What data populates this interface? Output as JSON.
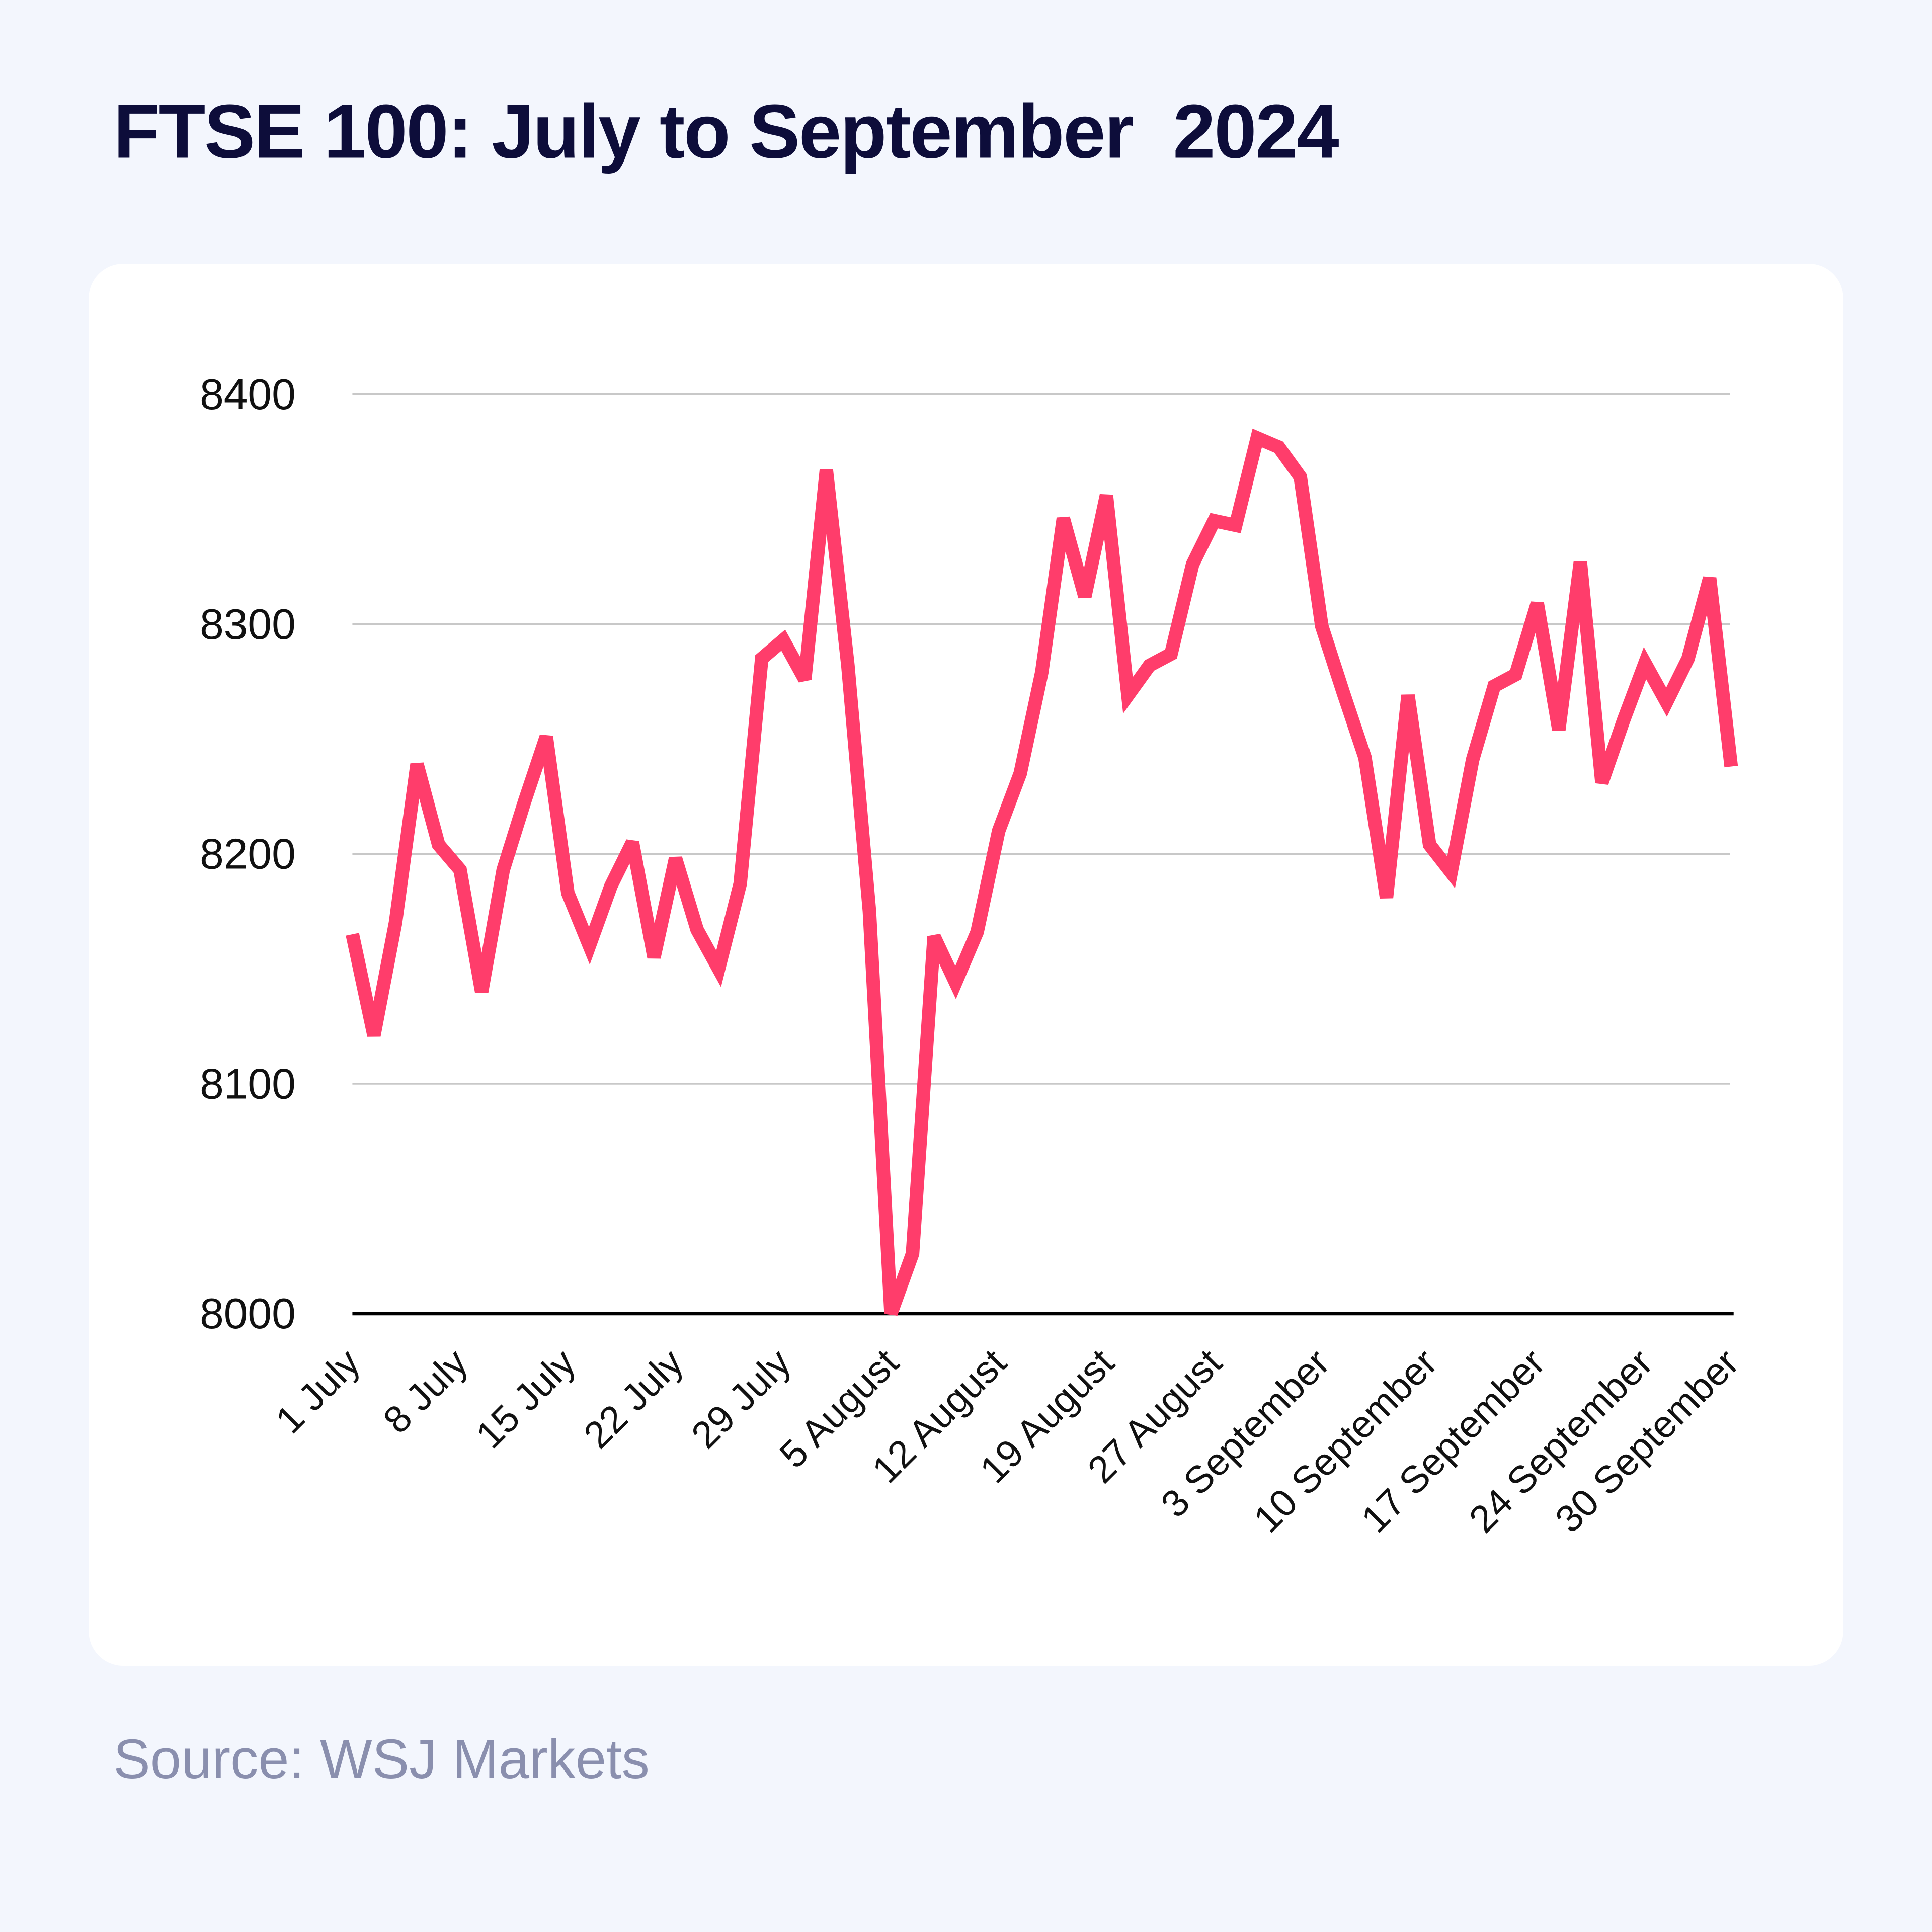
{
  "title": "FTSE 100: July to September  2024",
  "source": "Source: WSJ Markets",
  "colors": {
    "line": "#ff3d6b",
    "background": "#f3f6fd",
    "card": "#ffffff",
    "grid": "#c8c8c8",
    "axis": "#000000"
  },
  "chart_data": {
    "type": "line",
    "title": "FTSE 100: July to September  2024",
    "xlabel": "",
    "ylabel": "",
    "ylim": [
      8000,
      8400
    ],
    "yticks": [
      "8000",
      "8100",
      "8200",
      "8300",
      "8400"
    ],
    "grid": true,
    "xtick_labels": [
      "1 July",
      "8 July",
      "15 July",
      "22 July",
      "29 July",
      "5 August",
      "12 August",
      "19 August",
      "27 August",
      "3 September",
      "10 September",
      "17 September",
      "24 September",
      "30 September"
    ],
    "x": [
      "1 July",
      "2 July",
      "3 July",
      "4 July",
      "5 July",
      "8 July",
      "9 July",
      "10 July",
      "11 July",
      "12 July",
      "15 July",
      "16 July",
      "17 July",
      "18 July",
      "19 July",
      "22 July",
      "23 July",
      "24 July",
      "25 July",
      "26 July",
      "29 July",
      "30 July",
      "31 July",
      "1 August",
      "2 August",
      "5 August",
      "6 August",
      "7 August",
      "8 August",
      "9 August",
      "12 August",
      "13 August",
      "14 August",
      "15 August",
      "16 August",
      "19 August",
      "20 August",
      "21 August",
      "22 August",
      "23 August",
      "27 August",
      "28 August",
      "29 August",
      "30 August",
      "2 September",
      "3 September",
      "4 September",
      "5 September",
      "6 September",
      "9 September",
      "10 September",
      "11 September",
      "12 September",
      "13 September",
      "16 September",
      "17 September",
      "18 September",
      "19 September",
      "20 September",
      "23 September",
      "24 September",
      "25 September",
      "26 September",
      "27 September",
      "30 September"
    ],
    "series": [
      {
        "values": [
          8165,
          8121,
          8170,
          8239,
          8204,
          8193,
          8140,
          8193,
          8223,
          8251,
          8183,
          8160,
          8186,
          8205,
          8155,
          8198,
          8167,
          8150,
          8187,
          8285,
          8293,
          8276,
          8367,
          8282,
          8175,
          8000,
          8026,
          8164,
          8144,
          8166,
          8210,
          8235,
          8279,
          8346,
          8312,
          8356,
          8269,
          8282,
          8287,
          8326,
          8345,
          8343,
          8381,
          8377,
          8364,
          8299,
          8270,
          8242,
          8181,
          8269,
          8204,
          8192,
          8241,
          8273,
          8278,
          8309,
          8254,
          8327,
          8231,
          8258,
          8283,
          8266,
          8285,
          8320,
          8238
        ]
      }
    ]
  }
}
